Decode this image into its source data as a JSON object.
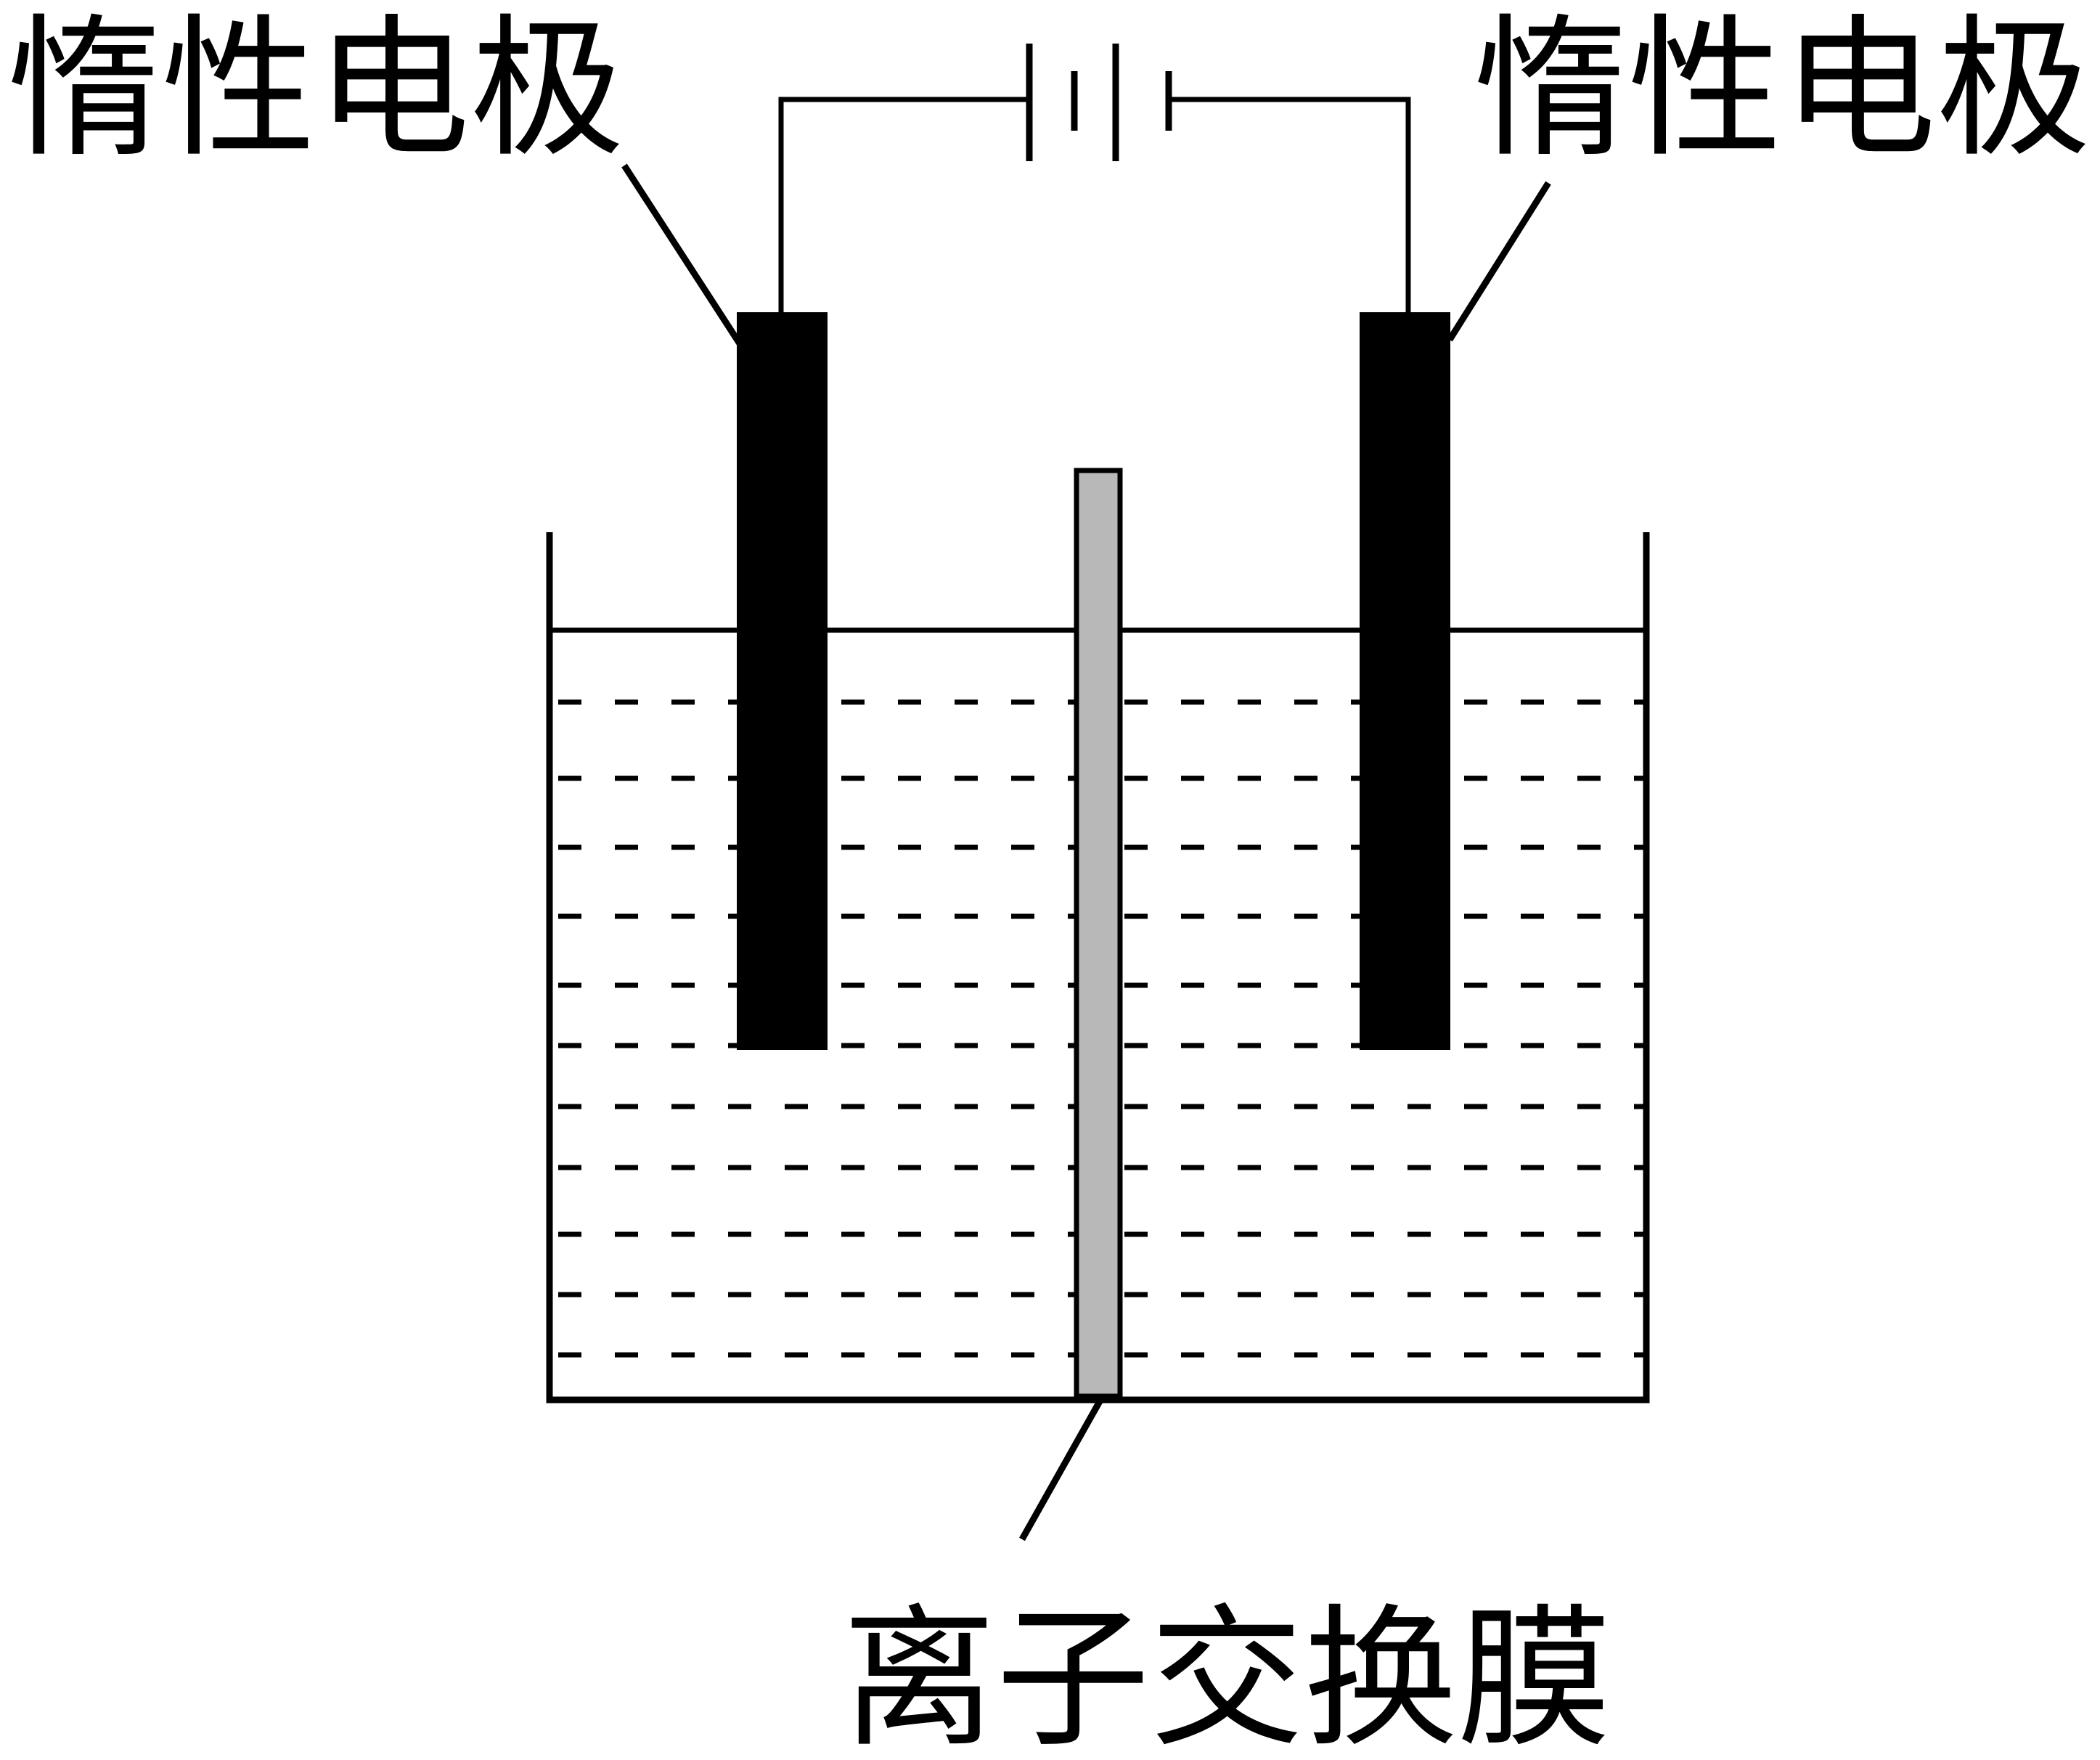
{
  "labels": {
    "left_electrode": "惰性电极",
    "right_electrode": "惰性电极",
    "membrane": "离子交换膜"
  },
  "colors": {
    "line": "#000000",
    "electrode": "#000000",
    "membrane": "#b8b8b8",
    "background": "#ffffff"
  },
  "components": {
    "power_source": "battery-symbol",
    "container": "beaker",
    "solution": "electrolyte-solution"
  }
}
